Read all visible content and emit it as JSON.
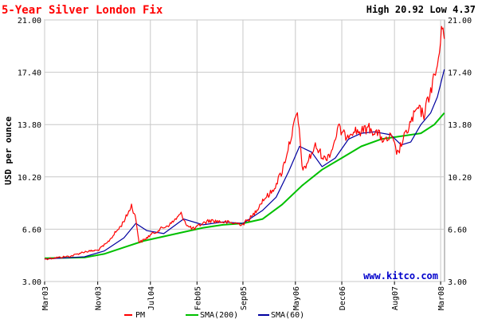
{
  "chart_data": {
    "type": "line",
    "title": "5-Year Silver London Fix",
    "subtitle": "High 20.92 Low 4.37",
    "ylabel": "USD per ounce",
    "xlabel": "",
    "ylim": [
      3.0,
      21.0
    ],
    "xlim": [
      "2003-03-01",
      "2008-03-19"
    ],
    "y_ticks": [
      "3.00",
      "6.60",
      "10.20",
      "13.80",
      "17.40",
      "21.00"
    ],
    "x_ticks": [
      {
        "label": "Mar03",
        "date": "2003-03-01"
      },
      {
        "label": "Nov03",
        "date": "2003-11-01"
      },
      {
        "label": "Jul04",
        "date": "2004-07-01"
      },
      {
        "label": "Feb05",
        "date": "2005-02-01"
      },
      {
        "label": "Sep05",
        "date": "2005-09-01"
      },
      {
        "label": "May06",
        "date": "2006-05-01"
      },
      {
        "label": "Dec06",
        "date": "2006-12-01"
      },
      {
        "label": "Aug07",
        "date": "2007-08-01"
      },
      {
        "label": "Mar08",
        "date": "2008-03-01"
      }
    ],
    "grid": true,
    "legend_position": "bottom",
    "watermark": "www.kitco.com",
    "series": [
      {
        "name": "PM",
        "color": "#ff0000",
        "points": [
          [
            "2003-03-01",
            4.55
          ],
          [
            "2003-05-01",
            4.65
          ],
          [
            "2003-07-01",
            4.75
          ],
          [
            "2003-09-01",
            5.05
          ],
          [
            "2003-11-01",
            5.15
          ],
          [
            "2003-12-15",
            5.65
          ],
          [
            "2004-01-15",
            6.25
          ],
          [
            "2004-02-15",
            6.8
          ],
          [
            "2004-03-15",
            7.55
          ],
          [
            "2004-04-05",
            8.25
          ],
          [
            "2004-04-25",
            7.3
          ],
          [
            "2004-05-10",
            5.7
          ],
          [
            "2004-06-01",
            5.85
          ],
          [
            "2004-07-01",
            6.2
          ],
          [
            "2004-08-15",
            6.6
          ],
          [
            "2004-10-01",
            6.95
          ],
          [
            "2004-11-20",
            7.65
          ],
          [
            "2004-12-20",
            6.8
          ],
          [
            "2005-01-20",
            6.6
          ],
          [
            "2005-02-20",
            6.95
          ],
          [
            "2005-04-01",
            7.2
          ],
          [
            "2005-06-01",
            7.1
          ],
          [
            "2005-08-01",
            7.0
          ],
          [
            "2005-09-01",
            6.95
          ],
          [
            "2005-10-15",
            7.5
          ],
          [
            "2005-12-01",
            8.6
          ],
          [
            "2006-01-15",
            9.2
          ],
          [
            "2006-03-01",
            10.6
          ],
          [
            "2006-04-15",
            13.2
          ],
          [
            "2006-05-10",
            14.6
          ],
          [
            "2006-06-05",
            10.5
          ],
          [
            "2006-07-01",
            11.4
          ],
          [
            "2006-08-01",
            12.3
          ],
          [
            "2006-09-15",
            11.4
          ],
          [
            "2006-10-15",
            12.0
          ],
          [
            "2006-11-15",
            13.6
          ],
          [
            "2006-12-15",
            13.0
          ],
          [
            "2007-01-20",
            13.4
          ],
          [
            "2007-03-01",
            13.3
          ],
          [
            "2007-04-01",
            13.6
          ],
          [
            "2007-05-15",
            13.2
          ],
          [
            "2007-06-20",
            12.6
          ],
          [
            "2007-07-15",
            13.0
          ],
          [
            "2007-08-15",
            11.8
          ],
          [
            "2007-09-15",
            12.9
          ],
          [
            "2007-10-20",
            14.1
          ],
          [
            "2007-11-15",
            14.9
          ],
          [
            "2007-12-15",
            14.5
          ],
          [
            "2008-01-15",
            16.2
          ],
          [
            "2008-02-15",
            17.8
          ],
          [
            "2008-03-05",
            20.0
          ],
          [
            "2008-03-12",
            20.92
          ],
          [
            "2008-03-18",
            19.7
          ]
        ]
      },
      {
        "name": "SMA(200)",
        "color": "#00c000",
        "points": [
          [
            "2003-03-01",
            4.6
          ],
          [
            "2003-09-01",
            4.65
          ],
          [
            "2003-12-01",
            4.9
          ],
          [
            "2004-03-01",
            5.35
          ],
          [
            "2004-06-01",
            5.8
          ],
          [
            "2004-09-01",
            6.1
          ],
          [
            "2004-12-01",
            6.4
          ],
          [
            "2005-03-01",
            6.7
          ],
          [
            "2005-06-01",
            6.9
          ],
          [
            "2005-09-01",
            7.0
          ],
          [
            "2005-12-01",
            7.3
          ],
          [
            "2006-03-01",
            8.3
          ],
          [
            "2006-06-01",
            9.6
          ],
          [
            "2006-09-01",
            10.7
          ],
          [
            "2006-12-01",
            11.5
          ],
          [
            "2007-03-01",
            12.3
          ],
          [
            "2007-06-01",
            12.8
          ],
          [
            "2007-09-01",
            13.0
          ],
          [
            "2007-12-01",
            13.2
          ],
          [
            "2008-02-01",
            13.8
          ],
          [
            "2008-03-18",
            14.6
          ]
        ]
      },
      {
        "name": "SMA(60)",
        "color": "#0000a0",
        "points": [
          [
            "2003-03-01",
            4.55
          ],
          [
            "2003-09-01",
            4.7
          ],
          [
            "2003-12-01",
            5.1
          ],
          [
            "2004-03-01",
            6.0
          ],
          [
            "2004-04-25",
            7.0
          ],
          [
            "2004-06-15",
            6.5
          ],
          [
            "2004-09-01",
            6.3
          ],
          [
            "2004-12-01",
            7.3
          ],
          [
            "2005-03-01",
            6.9
          ],
          [
            "2005-06-01",
            7.1
          ],
          [
            "2005-09-01",
            7.0
          ],
          [
            "2005-12-01",
            7.9
          ],
          [
            "2006-02-01",
            8.8
          ],
          [
            "2006-04-01",
            10.6
          ],
          [
            "2006-05-20",
            12.3
          ],
          [
            "2006-07-15",
            11.9
          ],
          [
            "2006-09-01",
            10.9
          ],
          [
            "2006-11-01",
            11.5
          ],
          [
            "2007-01-01",
            12.8
          ],
          [
            "2007-03-01",
            13.2
          ],
          [
            "2007-05-01",
            13.3
          ],
          [
            "2007-07-15",
            13.1
          ],
          [
            "2007-09-01",
            12.4
          ],
          [
            "2007-10-15",
            12.6
          ],
          [
            "2007-12-01",
            13.8
          ],
          [
            "2008-01-15",
            14.6
          ],
          [
            "2008-02-15",
            15.7
          ],
          [
            "2008-03-18",
            17.6
          ]
        ]
      }
    ]
  },
  "colors": {
    "title": "#ff0000",
    "text": "#000000",
    "grid": "#c8c8c8",
    "watermark": "#0000cc"
  }
}
